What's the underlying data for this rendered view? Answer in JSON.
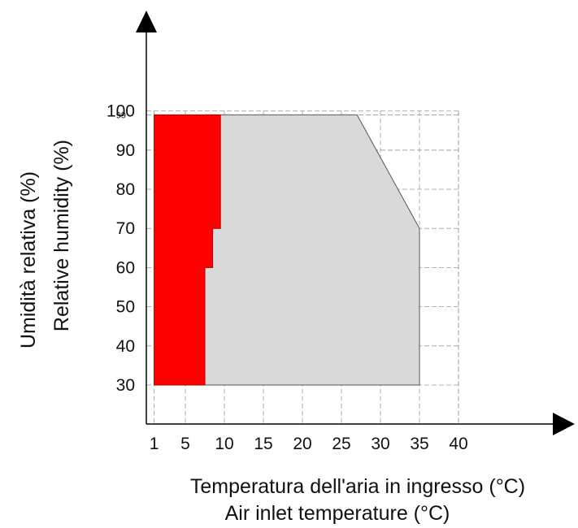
{
  "chart_data": {
    "type": "area",
    "xlabel": [
      "Temperatura dell'aria in ingresso (°C)",
      "Air inlet temperature (°C)"
    ],
    "ylabel": [
      "Umidità relativa  (%)",
      "Relative humidity  (%)"
    ],
    "x_ticks": [
      "1",
      "5",
      "10",
      "15",
      "20",
      "25",
      "30",
      "35",
      "40"
    ],
    "y_ticks": [
      "30",
      "40",
      "50",
      "60",
      "70",
      "80",
      "90",
      "100"
    ],
    "y_extra_tick": "99",
    "xlim": [
      0,
      40
    ],
    "ylim": [
      30,
      100
    ],
    "grid": true,
    "regions": [
      {
        "color": "#d9d9d9",
        "points": [
          [
            7.5,
            30
          ],
          [
            35,
            30
          ],
          [
            35,
            70
          ],
          [
            27,
            99
          ],
          [
            7.5,
            99
          ]
        ]
      },
      {
        "color": "#ff0000",
        "points": [
          [
            1,
            30
          ],
          [
            7.5,
            30
          ],
          [
            7.5,
            60
          ],
          [
            8.5,
            60
          ],
          [
            8.5,
            70
          ],
          [
            9.5,
            70
          ],
          [
            9.5,
            99
          ],
          [
            1,
            99
          ]
        ]
      }
    ]
  }
}
